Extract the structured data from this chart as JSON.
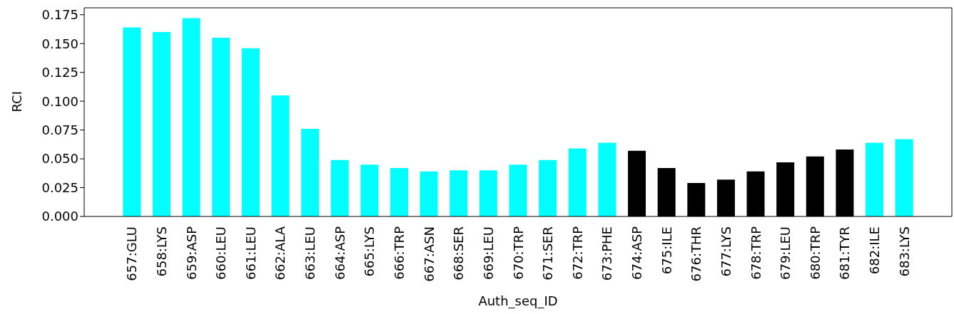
{
  "chart_data": {
    "type": "bar",
    "xlabel": "Auth_seq_ID",
    "ylabel": "RCI",
    "categories": [
      "657:GLU",
      "658:LYS",
      "659:ASP",
      "660:LEU",
      "661:LEU",
      "662:ALA",
      "663:LEU",
      "664:ASP",
      "665:LYS",
      "666:TRP",
      "667:ASN",
      "668:SER",
      "669:LEU",
      "670:TRP",
      "671:SER",
      "672:TRP",
      "673:PHE",
      "674:ASP",
      "675:ILE",
      "676:THR",
      "677:LYS",
      "678:TRP",
      "679:LEU",
      "680:TRP",
      "681:TYR",
      "682:ILE",
      "683:LYS"
    ],
    "values": [
      0.164,
      0.16,
      0.172,
      0.155,
      0.146,
      0.105,
      0.076,
      0.049,
      0.045,
      0.042,
      0.039,
      0.04,
      0.04,
      0.045,
      0.049,
      0.059,
      0.064,
      0.057,
      0.042,
      0.029,
      0.032,
      0.039,
      0.047,
      0.052,
      0.058,
      0.064,
      0.067
    ],
    "colors": [
      "#00ffff",
      "#00ffff",
      "#00ffff",
      "#00ffff",
      "#00ffff",
      "#00ffff",
      "#00ffff",
      "#00ffff",
      "#00ffff",
      "#00ffff",
      "#00ffff",
      "#00ffff",
      "#00ffff",
      "#00ffff",
      "#00ffff",
      "#00ffff",
      "#00ffff",
      "#000000",
      "#000000",
      "#000000",
      "#000000",
      "#000000",
      "#000000",
      "#000000",
      "#000000",
      "#00ffff",
      "#00ffff"
    ],
    "ylim": [
      0,
      0.181
    ],
    "yticks": [
      {
        "value": 0,
        "label": "0.000"
      },
      {
        "value": 0.025,
        "label": "0.025"
      },
      {
        "value": 0.05,
        "label": "0.050"
      },
      {
        "value": 0.075,
        "label": "0.075"
      },
      {
        "value": 0.1,
        "label": "0.100"
      },
      {
        "value": 0.125,
        "label": "0.125"
      },
      {
        "value": 0.15,
        "label": "0.150"
      },
      {
        "value": 0.175,
        "label": "0.175"
      }
    ],
    "grid": false
  }
}
